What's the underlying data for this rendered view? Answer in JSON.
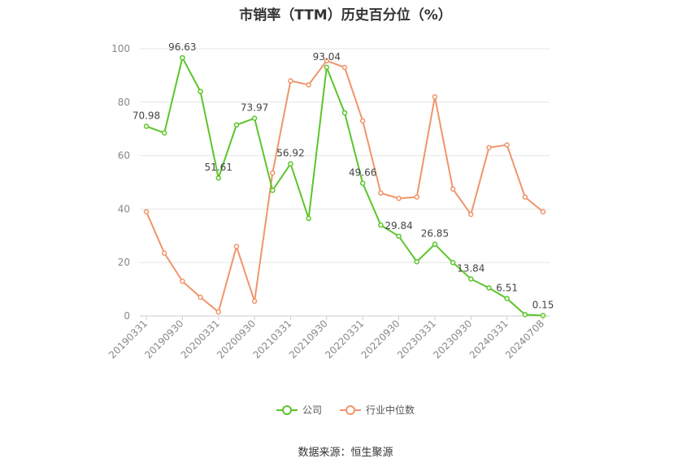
{
  "source_label": "数据来源：恒生聚源",
  "chart_data": {
    "type": "line",
    "title": "市销率（TTM）历史百分位（%）",
    "x": [
      "20190331",
      "20190630",
      "20190930",
      "20191231",
      "20200331",
      "20200630",
      "20200930",
      "20201231",
      "20210331",
      "20210630",
      "20210930",
      "20211231",
      "20220331",
      "20220630",
      "20220930",
      "20221230",
      "20230331",
      "20230630",
      "20230930",
      "20231231",
      "20240331",
      "20240630",
      "20240708"
    ],
    "tick_labels": [
      "20190331",
      "20190930",
      "20200331",
      "20200930",
      "20210331",
      "20210930",
      "20220331",
      "20220930",
      "20230331",
      "20230930",
      "20240331",
      "20240708"
    ],
    "ylim": [
      0,
      100
    ],
    "yticks": [
      0,
      20,
      40,
      60,
      80,
      100
    ],
    "grid": true,
    "legend_position": "bottom",
    "series": [
      {
        "name": "公司",
        "color": "#5cc52a",
        "values": [
          70.98,
          68.5,
          96.63,
          84.0,
          51.61,
          71.5,
          73.97,
          47.0,
          56.92,
          36.5,
          93.04,
          76.0,
          49.66,
          34.0,
          29.84,
          20.3,
          26.85,
          20.0,
          13.84,
          10.5,
          6.51,
          0.5,
          0.15
        ],
        "labels": {
          "0": "70.98",
          "2": "96.63",
          "4": "51.61",
          "6": "73.97",
          "8": "56.92",
          "10": "93.04",
          "12": "49.66",
          "14": "29.84",
          "16": "26.85",
          "18": "13.84",
          "20": "6.51",
          "22": "0.15"
        }
      },
      {
        "name": "行业中位数",
        "color": "#f0956a",
        "values": [
          39.0,
          23.5,
          13.0,
          7.0,
          1.5,
          26.0,
          5.5,
          53.5,
          88.0,
          86.5,
          95.5,
          93.0,
          73.0,
          46.0,
          44.0,
          44.5,
          82.0,
          47.5,
          38.0,
          63.0,
          64.0,
          44.5,
          39.0
        ]
      }
    ]
  }
}
